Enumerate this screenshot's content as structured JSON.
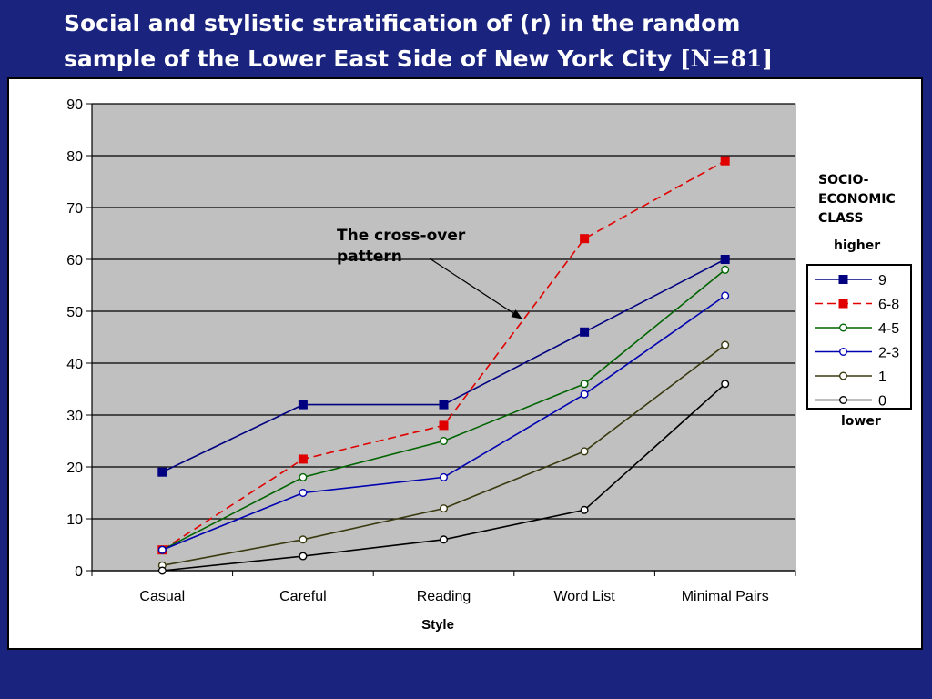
{
  "slide": {
    "title_line1": "Social and stylistic stratification of (r) in the random",
    "title_line2": "sample of the Lower East Side of New York City ",
    "title_sample": "[N=81]"
  },
  "chart_data": {
    "type": "line",
    "categories": [
      "Casual",
      "Careful",
      "Reading",
      "Word List",
      "Minimal Pairs"
    ],
    "xlabel": "Style",
    "ylabel": "",
    "ylim": [
      0,
      90
    ],
    "yticks": [
      "0",
      "10",
      "20",
      "30",
      "40",
      "50",
      "60",
      "70",
      "80",
      "90"
    ],
    "grid": true,
    "plot_background": "#c0c0c0",
    "legend_placement": "right",
    "legend_title_line1": "SOCIO-",
    "legend_title_line2": "ECONOMIC",
    "legend_title_line3": "CLASS",
    "legend_top_label": "higher",
    "legend_bottom_label": "lower",
    "annotation": {
      "line1": "The cross-over",
      "line2": "pattern"
    },
    "series": [
      {
        "name": "9",
        "values": [
          19,
          32,
          32,
          46,
          60
        ],
        "color": "#000080",
        "marker": "square",
        "dashed": false
      },
      {
        "name": "6-8",
        "values": [
          4,
          21.5,
          28,
          64,
          79
        ],
        "color": "#e00000",
        "marker": "square",
        "dashed": true
      },
      {
        "name": "4-5",
        "values": [
          4,
          18,
          25,
          36,
          58
        ],
        "color": "#006400",
        "marker": "circle",
        "dashed": false
      },
      {
        "name": "2-3",
        "values": [
          4,
          15,
          18,
          34,
          53
        ],
        "color": "#0000b0",
        "marker": "circle",
        "dashed": false
      },
      {
        "name": "1",
        "values": [
          1,
          6,
          12,
          23,
          43.5
        ],
        "color": "#3a3a10",
        "marker": "circle",
        "dashed": false
      },
      {
        "name": "0",
        "values": [
          0,
          2.8,
          6,
          11.7,
          36
        ],
        "color": "#000000",
        "marker": "circle",
        "dashed": false
      }
    ]
  }
}
